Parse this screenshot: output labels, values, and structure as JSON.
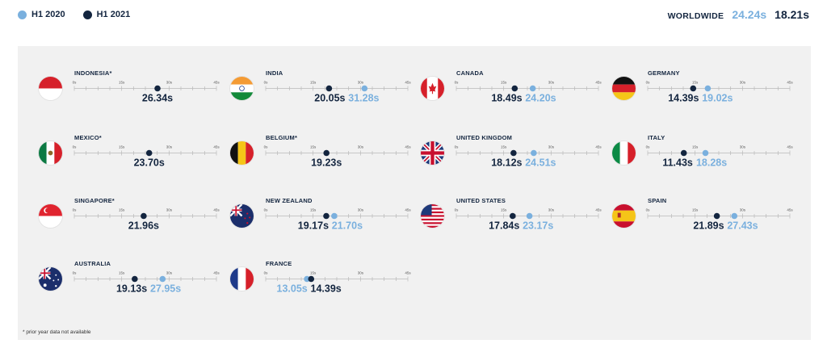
{
  "legend": {
    "items": [
      {
        "label": "H1 2020",
        "color": "#7ab0de"
      },
      {
        "label": "H1 2021",
        "color": "#13253f"
      }
    ]
  },
  "worldwide": {
    "label": "WORLDWIDE",
    "h1_2020": "24.24s",
    "h1_2021": "18.21s"
  },
  "footnote": "* prior year data not available",
  "colors": {
    "h1_2020": "#7ab0de",
    "h1_2021": "#13253f",
    "panel": "#f1f1f1",
    "axis": "#b9b9b9"
  },
  "chart_data": {
    "type": "dot-plot",
    "x_range": [
      0,
      45
    ],
    "ticks": [
      "0s",
      "15s",
      "30s",
      "45s"
    ],
    "tick_values": [
      0,
      15,
      30,
      45
    ],
    "series": [
      {
        "name": "H1 2020"
      },
      {
        "name": "H1 2021"
      }
    ],
    "countries": [
      {
        "name": "INDONESIA*",
        "flag": "indonesia-flag",
        "h1_2020": null,
        "h1_2021": 26.34,
        "label_2020": "",
        "label_2021": "26.34s"
      },
      {
        "name": "INDIA",
        "flag": "india-flag",
        "h1_2020": 31.28,
        "h1_2021": 20.05,
        "label_2020": "31.28s",
        "label_2021": "20.05s"
      },
      {
        "name": "CANADA",
        "flag": "canada-flag",
        "h1_2020": 24.2,
        "h1_2021": 18.49,
        "label_2020": "24.20s",
        "label_2021": "18.49s"
      },
      {
        "name": "GERMANY",
        "flag": "germany-flag",
        "h1_2020": 19.02,
        "h1_2021": 14.39,
        "label_2020": "19.02s",
        "label_2021": "14.39s"
      },
      {
        "name": "MEXICO*",
        "flag": "mexico-flag",
        "h1_2020": null,
        "h1_2021": 23.7,
        "label_2020": "",
        "label_2021": "23.70s"
      },
      {
        "name": "BELGIUM*",
        "flag": "belgium-flag",
        "h1_2020": null,
        "h1_2021": 19.23,
        "label_2020": "",
        "label_2021": "19.23s"
      },
      {
        "name": "UNITED KINGDOM",
        "flag": "uk-flag",
        "h1_2020": 24.51,
        "h1_2021": 18.12,
        "label_2020": "24.51s",
        "label_2021": "18.12s"
      },
      {
        "name": "ITALY",
        "flag": "italy-flag",
        "h1_2020": 18.28,
        "h1_2021": 11.43,
        "label_2020": "18.28s",
        "label_2021": "11.43s"
      },
      {
        "name": "SINGAPORE*",
        "flag": "singapore-flag",
        "h1_2020": null,
        "h1_2021": 21.96,
        "label_2020": "",
        "label_2021": "21.96s"
      },
      {
        "name": "NEW ZEALAND",
        "flag": "new-zealand-flag",
        "h1_2020": 21.7,
        "h1_2021": 19.17,
        "label_2020": "21.70s",
        "label_2021": "19.17s"
      },
      {
        "name": "UNITED STATES",
        "flag": "usa-flag",
        "h1_2020": 23.17,
        "h1_2021": 17.84,
        "label_2020": "23.17s",
        "label_2021": "17.84s"
      },
      {
        "name": "SPAIN",
        "flag": "spain-flag",
        "h1_2020": 27.43,
        "h1_2021": 21.89,
        "label_2020": "27.43s",
        "label_2021": "21.89s"
      },
      {
        "name": "AUSTRALIA",
        "flag": "australia-flag",
        "h1_2020": 27.95,
        "h1_2021": 19.13,
        "label_2020": "27.95s",
        "label_2021": "19.13s"
      },
      {
        "name": "FRANCE",
        "flag": "france-flag",
        "h1_2020": 13.05,
        "h1_2021": 14.39,
        "label_2020": "13.05s",
        "label_2021": "14.39s"
      }
    ]
  }
}
